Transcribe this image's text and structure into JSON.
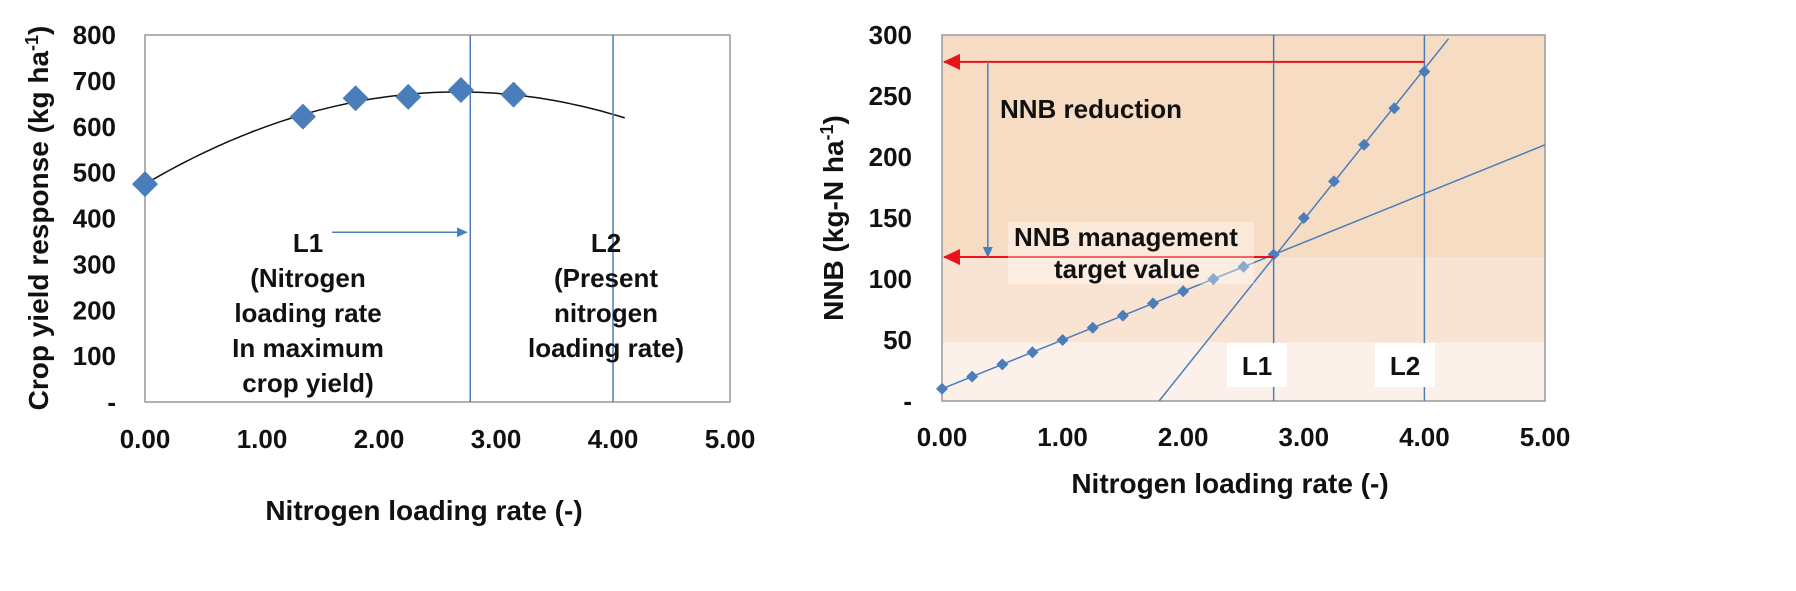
{
  "chart_data": [
    {
      "type": "scatter",
      "xlabel": "Nitrogen loading rate (-)",
      "ylabel_main": "Crop yield response (kg ha",
      "ylabel_sup": "-1",
      "ylabel_close": ")",
      "xlim": [
        0,
        5
      ],
      "ylim": [
        0,
        800
      ],
      "xticks": [
        "0.00",
        "1.00",
        "2.00",
        "3.00",
        "4.00",
        "5.00"
      ],
      "yticks": [
        "-",
        "100",
        "200",
        "300",
        "400",
        "500",
        "600",
        "700",
        "800"
      ],
      "points": [
        {
          "x": 0.0,
          "y": 475
        },
        {
          "x": 1.35,
          "y": 622
        },
        {
          "x": 1.8,
          "y": 662
        },
        {
          "x": 2.25,
          "y": 665
        },
        {
          "x": 2.7,
          "y": 680
        },
        {
          "x": 3.15,
          "y": 670
        }
      ],
      "fit_curve": {
        "x_range": [
          0,
          4.1
        ],
        "coeffs": [
          475,
          150,
          -28
        ]
      },
      "color": "#4a7ebb",
      "vlines": [
        2.78,
        4.0
      ],
      "annotations": {
        "l1": [
          "L1",
          "(Nitrogen",
          "loading rate",
          "In maximum",
          "crop yield)"
        ],
        "l2": [
          "L2",
          "(Present",
          "nitrogen",
          "loading rate)"
        ]
      },
      "l1_arrow": {
        "x_from": 1.6,
        "x_to": 2.75,
        "y": 370
      }
    },
    {
      "type": "line",
      "xlabel": "Nitrogen loading rate (-)",
      "ylabel_main": "NNB (kg-N ha",
      "ylabel_sup": "-1",
      "ylabel_close": ")",
      "xlim": [
        0,
        5
      ],
      "ylim": [
        0,
        300
      ],
      "xticks": [
        "0.00",
        "1.00",
        "2.00",
        "3.00",
        "4.00",
        "5.00"
      ],
      "yticks": [
        "-",
        "50",
        "100",
        "150",
        "200",
        "250",
        "300"
      ],
      "series": [
        {
          "values": [
            {
              "x": 0.0,
              "y": 10
            },
            {
              "x": 0.25,
              "y": 20
            },
            {
              "x": 0.5,
              "y": 30
            },
            {
              "x": 0.75,
              "y": 40
            },
            {
              "x": 1.0,
              "y": 50
            },
            {
              "x": 1.25,
              "y": 60
            },
            {
              "x": 1.5,
              "y": 70
            },
            {
              "x": 1.75,
              "y": 80
            },
            {
              "x": 2.0,
              "y": 90
            },
            {
              "x": 2.25,
              "y": 100
            },
            {
              "x": 2.5,
              "y": 110
            },
            {
              "x": 2.75,
              "y": 120
            },
            {
              "x": 3.0,
              "y": 150
            },
            {
              "x": 3.25,
              "y": 180
            },
            {
              "x": 3.5,
              "y": 210
            },
            {
              "x": 3.75,
              "y": 240
            },
            {
              "x": 4.0,
              "y": 270
            }
          ]
        }
      ],
      "trend_lines": [
        {
          "from": [
            0,
            10
          ],
          "to": [
            5,
            210
          ]
        },
        {
          "from": [
            1.8,
            0
          ],
          "to": [
            4.2,
            297
          ]
        }
      ],
      "bands": [
        {
          "y0": 0,
          "y1": 48,
          "color": "#fcf1ea"
        },
        {
          "y0": 48,
          "y1": 118,
          "color": "#f9e3d3"
        },
        {
          "y0": 118,
          "y1": 300,
          "color": "#f7dcc4"
        }
      ],
      "color": "#4a7ebb",
      "arrow_color": "#e8141c",
      "vlines": [
        2.75,
        4.0
      ],
      "red_arrows": [
        {
          "y": 278,
          "x_from": 4.0,
          "x_to": 0.0
        },
        {
          "y": 118,
          "x_from": 2.75,
          "x_to": 0.0
        }
      ],
      "down_arrow": {
        "x": 0.38,
        "y_from": 278,
        "y_to": 118
      },
      "annotations": {
        "reduction": "NNB reduction",
        "target": [
          "NNB management",
          "target value"
        ],
        "l1": "L1",
        "l2": "L2"
      }
    }
  ]
}
